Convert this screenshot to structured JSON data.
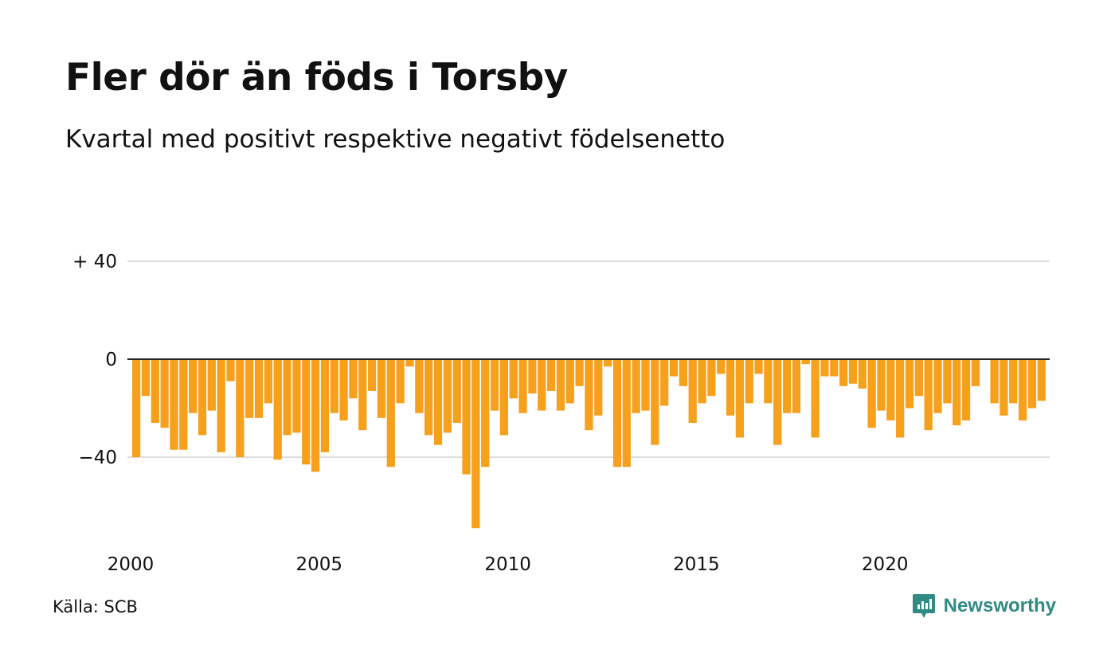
{
  "title": "Fler dör än föds i Torsby",
  "subtitle": "Kvartal med positivt respektive negativt födelsenetto",
  "source": "Källa: SCB",
  "brand": {
    "name": "Newsworthy",
    "icon": "newsworthy-logo-icon",
    "color": "#2f8b83"
  },
  "colors": {
    "bar": "#f6a01c",
    "grid": "#dddddd",
    "zero_line": "#222222"
  },
  "chart_data": {
    "type": "bar",
    "title": "Fler dör än föds i Torsby",
    "subtitle": "Kvartal med positivt respektive negativt födelsenetto",
    "xlabel": "",
    "ylabel": "",
    "ylim": [
      -75,
      60
    ],
    "y_ticks": [
      {
        "value": 40,
        "label": "+ 40"
      },
      {
        "value": 0,
        "label": "0"
      },
      {
        "value": -40,
        "label": "−40"
      }
    ],
    "x_ticks": [
      {
        "value": 2000,
        "label": "2000"
      },
      {
        "value": 2005,
        "label": "2005"
      },
      {
        "value": 2010,
        "label": "2010"
      },
      {
        "value": 2015,
        "label": "2015"
      },
      {
        "value": 2020,
        "label": "2020"
      }
    ],
    "grid": true,
    "start_year": 2000,
    "periods_per_year": 4,
    "values": [
      -40,
      -15,
      -26,
      -28,
      -37,
      -37,
      -22,
      -31,
      -21,
      -38,
      -9,
      -40,
      -24,
      -24,
      -18,
      -41,
      -31,
      -30,
      -43,
      -46,
      -38,
      -22,
      -25,
      -16,
      -29,
      -13,
      -24,
      -44,
      -18,
      -3,
      -22,
      -31,
      -35,
      -30,
      -26,
      -47,
      -69,
      -44,
      -21,
      -31,
      -16,
      -22,
      -14,
      -21,
      -13,
      -21,
      -18,
      -11,
      -29,
      -23,
      -3,
      -44,
      -44,
      -22,
      -21,
      -35,
      -19,
      -7,
      -11,
      -26,
      -18,
      -15,
      -6,
      -23,
      -32,
      -18,
      -6,
      -18,
      -35,
      -22,
      -22,
      -2,
      -32,
      -7,
      -7,
      -11,
      -10,
      -12,
      -28,
      -21,
      -25,
      -32,
      -20,
      -15,
      -29,
      -22,
      -18,
      -27,
      -25,
      -11,
      0,
      -18,
      -23,
      -18,
      -25,
      -20,
      -17
    ]
  }
}
